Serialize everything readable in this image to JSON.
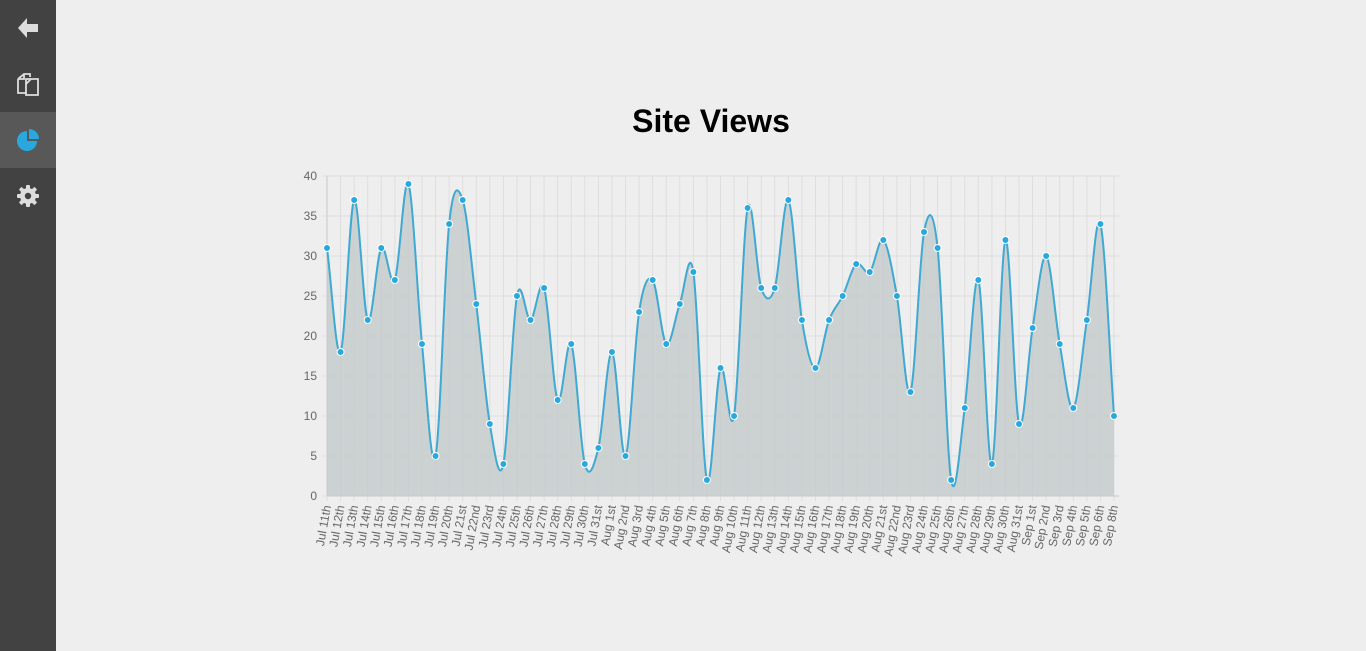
{
  "sidebar": {
    "items": [
      {
        "name": "back-icon",
        "active": false
      },
      {
        "name": "pages-icon",
        "active": false
      },
      {
        "name": "analytics-icon",
        "active": true
      },
      {
        "name": "settings-icon",
        "active": false
      }
    ]
  },
  "colors": {
    "sidebar_bg": "#424242",
    "active_item_bg": "#585858",
    "accent": "#29a8e0",
    "line": "#3fa9d2",
    "fill": "#c6cbcd"
  },
  "chart_data": {
    "type": "line",
    "title": "Site Views",
    "xlabel": "",
    "ylabel": "",
    "ylim": [
      0,
      40
    ],
    "yticks": [
      0,
      5,
      10,
      15,
      20,
      25,
      30,
      35,
      40
    ],
    "grid": true,
    "fill": true,
    "categories": [
      "Jul 11th",
      "Jul 12th",
      "Jul 13th",
      "Jul 14th",
      "Jul 15th",
      "Jul 16th",
      "Jul 17th",
      "Jul 18th",
      "Jul 19th",
      "Jul 20th",
      "Jul 21st",
      "Jul 22nd",
      "Jul 23rd",
      "Jul 24th",
      "Jul 25th",
      "Jul 26th",
      "Jul 27th",
      "Jul 28th",
      "Jul 29th",
      "Jul 30th",
      "Jul 31st",
      "Aug 1st",
      "Aug 2nd",
      "Aug 3rd",
      "Aug 4th",
      "Aug 5th",
      "Aug 6th",
      "Aug 7th",
      "Aug 8th",
      "Aug 9th",
      "Aug 10th",
      "Aug 11th",
      "Aug 12th",
      "Aug 13th",
      "Aug 14th",
      "Aug 15th",
      "Aug 16th",
      "Aug 17th",
      "Aug 18th",
      "Aug 19th",
      "Aug 20th",
      "Aug 21st",
      "Aug 22nd",
      "Aug 23rd",
      "Aug 24th",
      "Aug 25th",
      "Aug 26th",
      "Aug 27th",
      "Aug 28th",
      "Aug 29th",
      "Aug 30th",
      "Aug 31st",
      "Sep 1st",
      "Sep 2nd",
      "Sep 3rd",
      "Sep 4th",
      "Sep 5th",
      "Sep 6th",
      "Sep 8th"
    ],
    "series": [
      {
        "name": "Site Views",
        "values": [
          31,
          18,
          37,
          22,
          31,
          27,
          39,
          19,
          5,
          34,
          37,
          24,
          9,
          4,
          25,
          22,
          26,
          12,
          19,
          4,
          6,
          18,
          5,
          23,
          27,
          19,
          24,
          28,
          2,
          16,
          10,
          36,
          26,
          26,
          37,
          22,
          16,
          22,
          25,
          29,
          28,
          32,
          25,
          13,
          33,
          31,
          2,
          11,
          27,
          4,
          32,
          9,
          21,
          30,
          19,
          11,
          22,
          34,
          10
        ]
      }
    ]
  }
}
